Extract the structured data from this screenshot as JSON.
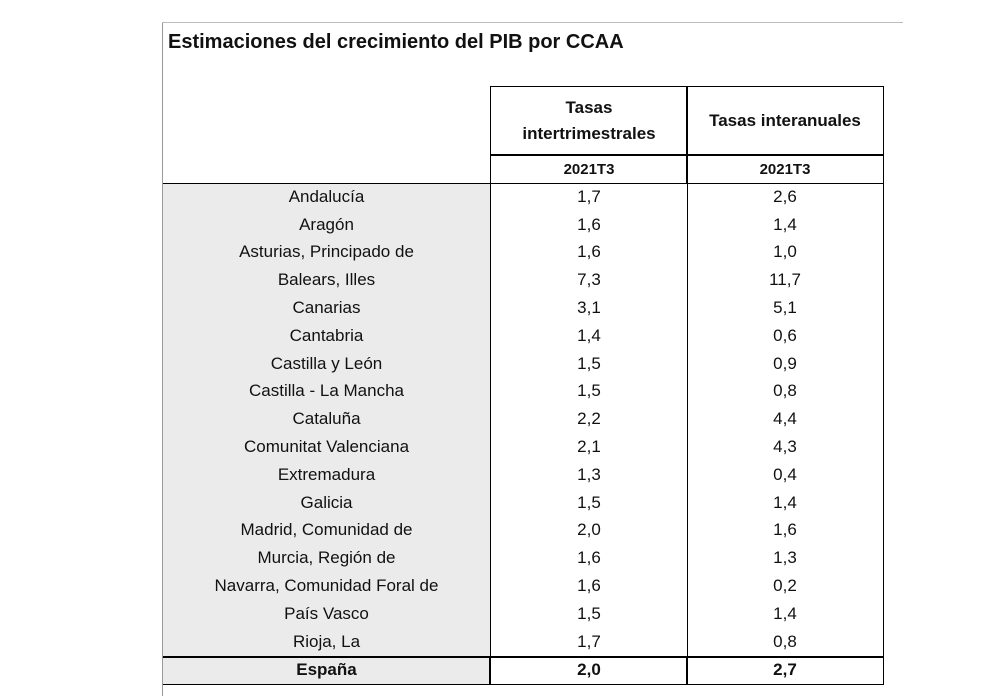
{
  "title": "Estimaciones del crecimiento del PIB por CCAA",
  "table": {
    "header": {
      "col1": "Tasas intertrimestrales",
      "col2": "Tasas interanuales",
      "period1": "2021T3",
      "period2": "2021T3"
    },
    "rows": [
      [
        "Andalucía",
        "1,7",
        "2,6"
      ],
      [
        "Aragón",
        "1,6",
        "1,4"
      ],
      [
        "Asturias, Principado de",
        "1,6",
        "1,0"
      ],
      [
        "Balears, Illes",
        "7,3",
        "11,7"
      ],
      [
        "Canarias",
        "3,1",
        "5,1"
      ],
      [
        "Cantabria",
        "1,4",
        "0,6"
      ],
      [
        "Castilla y León",
        "1,5",
        "0,9"
      ],
      [
        "Castilla - La Mancha",
        "1,5",
        "0,8"
      ],
      [
        "Cataluña",
        "2,2",
        "4,4"
      ],
      [
        "Comunitat Valenciana",
        "2,1",
        "4,3"
      ],
      [
        "Extremadura",
        "1,3",
        "0,4"
      ],
      [
        "Galicia",
        "1,5",
        "1,4"
      ],
      [
        "Madrid, Comunidad de",
        "2,0",
        "1,6"
      ],
      [
        "Murcia, Región de",
        "1,6",
        "1,3"
      ],
      [
        "Navarra, Comunidad Foral de",
        "1,6",
        "0,2"
      ],
      [
        "País Vasco",
        "1,5",
        "1,4"
      ],
      [
        "Rioja, La",
        "1,7",
        "0,8"
      ]
    ],
    "total": [
      "España",
      "2,0",
      "2,7"
    ]
  }
}
